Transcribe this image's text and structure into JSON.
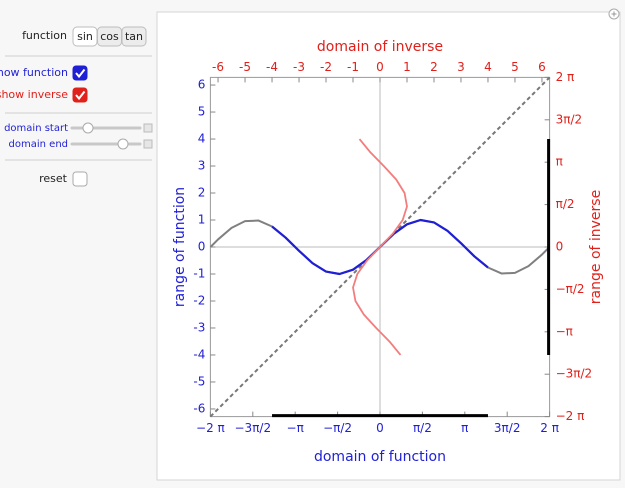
{
  "controls": {
    "function_label": "function",
    "function_buttons": [
      "sin",
      "cos",
      "tan"
    ],
    "selected_function": 0,
    "checkboxes": [
      {
        "label": "show function",
        "checked": true,
        "color": "#1f1fd6"
      },
      {
        "label": "show inverse",
        "checked": true,
        "color": "#e0201a"
      }
    ],
    "sliders": [
      {
        "label": "domain start",
        "color": "#1f1fd6"
      },
      {
        "label": "domain end",
        "color": "#1f1fd6"
      }
    ],
    "reset": {
      "label": "reset",
      "checked": false
    }
  },
  "chart_data": {
    "type": "line",
    "xlabel": "domain of function",
    "ylabel": "range of function",
    "x2label": "domain of inverse",
    "y2label": "range of inverse",
    "axis_color": "#1f1fd6",
    "inverse_axis_color": "#e0201a",
    "xlim": [
      -6.2832,
      6.2832
    ],
    "ylim": [
      -6.2832,
      6.2832
    ],
    "x2lim": [
      -6.2832,
      6.2832
    ],
    "y2lim": [
      -6.2832,
      6.2832
    ],
    "xticks": [
      {
        "value": -6.2832,
        "label": "−2 π"
      },
      {
        "value": -4.7124,
        "label": "−3π/2"
      },
      {
        "value": -3.1416,
        "label": "−π"
      },
      {
        "value": -1.5708,
        "label": "−π/2"
      },
      0,
      {
        "value": 1.5708,
        "label": "π/2"
      },
      {
        "value": 3.1416,
        "label": "π"
      },
      {
        "value": 4.7124,
        "label": "3π/2"
      },
      {
        "value": 6.2832,
        "label": "2 π"
      }
    ],
    "yticks": [
      -6,
      -5,
      -4,
      -3,
      -2,
      -1,
      0,
      1,
      2,
      3,
      4,
      5,
      6
    ],
    "x2ticks": [
      -6,
      -5,
      -4,
      -3,
      -2,
      -1,
      0,
      1,
      2,
      3,
      4,
      5,
      6
    ],
    "y2ticks": [
      {
        "value": -6.2832,
        "label": "−2 π"
      },
      {
        "value": -4.7124,
        "label": "−3π/2"
      },
      {
        "value": -3.1416,
        "label": "−π"
      },
      {
        "value": -1.5708,
        "label": "−π/2"
      },
      0,
      {
        "value": 1.5708,
        "label": "π/2"
      },
      {
        "value": 3.1416,
        "label": "π"
      },
      {
        "value": 4.7124,
        "label": "3π/2"
      },
      {
        "value": 6.2832,
        "label": "2 π"
      }
    ],
    "series": [
      {
        "color": "#777777",
        "dash": true,
        "width": 2,
        "x": [
          -6.2832,
          6.2832
        ],
        "values": [
          -6.2832,
          6.2832
        ]
      },
      {
        "color": "#808080",
        "width": 2,
        "x": [
          -6.28,
          -6,
          -5.5,
          -5,
          -4.5,
          -4,
          -3.5,
          -3,
          -2.5,
          -2,
          -1.5,
          -1,
          -0.5,
          0,
          0.5,
          1,
          1.5,
          2,
          2.5,
          3,
          3.5,
          4,
          4.5,
          5,
          5.5,
          6,
          6.28
        ],
        "values": [
          0,
          0.28,
          0.71,
          0.96,
          0.98,
          0.76,
          0.35,
          -0.14,
          -0.6,
          -0.91,
          -1,
          -0.84,
          -0.48,
          0,
          0.48,
          0.84,
          1,
          0.91,
          0.6,
          0.14,
          -0.35,
          -0.76,
          -0.98,
          -0.96,
          -0.71,
          -0.28,
          0
        ]
      },
      {
        "color": "#1f1fd6",
        "width": 2.2,
        "x": [
          -4,
          -3.5,
          -3,
          -2.5,
          -2,
          -1.5,
          -1,
          -0.5,
          0,
          0.5,
          1,
          1.5,
          2,
          2.5,
          3,
          3.5,
          4
        ],
        "values": [
          0.76,
          0.35,
          -0.14,
          -0.6,
          -0.91,
          -1,
          -0.84,
          -0.48,
          0,
          0.48,
          0.84,
          1,
          0.91,
          0.6,
          0.14,
          -0.35,
          -0.76
        ]
      },
      {
        "color": "#f47c7c",
        "width": 1.8,
        "x": [
          0.76,
          0.35,
          -0.14,
          -0.6,
          -0.91,
          -1,
          -0.84,
          -0.48,
          0,
          0.48,
          0.84,
          1,
          0.91,
          0.6,
          0.14,
          -0.35,
          -0.76
        ],
        "values": [
          -4,
          -3.5,
          -3,
          -2.5,
          -2,
          -1.5,
          -1,
          -0.5,
          0,
          0.5,
          1,
          1.5,
          2,
          2.5,
          3,
          3.5,
          4
        ]
      }
    ],
    "domain_bar": [
      -4,
      4
    ],
    "range_bar": [
      -4,
      4
    ],
    "bar_color": "#000000"
  }
}
